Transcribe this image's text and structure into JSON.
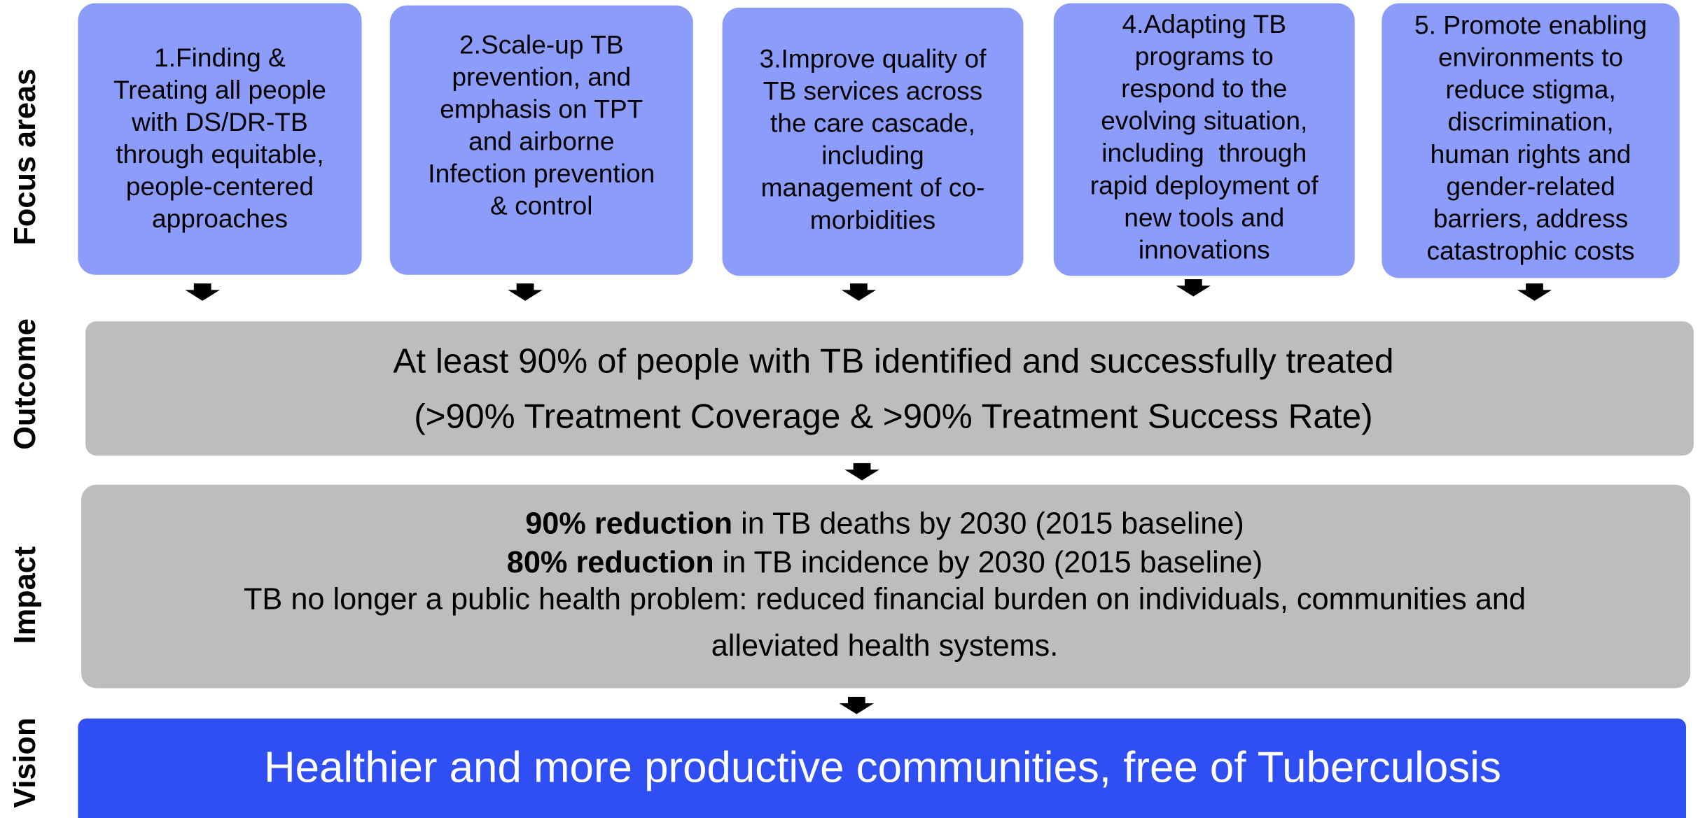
{
  "row_labels": [
    "Focus areas",
    "Outcome",
    "Impact",
    "Vision"
  ],
  "focus_areas": [
    {
      "lines": [
        "1.Finding &",
        "Treating all people",
        "with DS/DR-TB",
        "through equitable,",
        "people-centered",
        "approaches"
      ]
    },
    {
      "lines": [
        "2.Scale-up TB",
        "prevention, and",
        "emphasis on TPT",
        "and airborne",
        "Infection prevention",
        "& control"
      ]
    },
    {
      "lines": [
        "3.Improve quality of",
        "TB services across",
        "the care cascade,",
        "including",
        "management of co-",
        "morbidities"
      ]
    },
    {
      "lines": [
        "4.Adapting TB",
        "programs to",
        "respond to the",
        "evolving situation,",
        "including  through",
        "rapid deployment of",
        "new tools and",
        "innovations"
      ]
    },
    {
      "lines": [
        "5. Promote enabling",
        "environments to",
        "reduce stigma,",
        "discrimination,",
        "human rights and",
        "gender-related",
        "barriers, address",
        "catastrophic costs"
      ]
    }
  ],
  "outcome": {
    "lines": [
      "At least 90% of people with TB identified and successfully treated",
      "(>90% Treatment Coverage & >90% Treatment Success Rate)"
    ]
  },
  "impact": {
    "lines": [
      {
        "bold": "90% reduction",
        "text": " in TB deaths by 2030 (2015 baseline)"
      },
      {
        "bold": "80% reduction",
        "text": " in TB incidence by 2030 (2015 baseline)"
      },
      {
        "text": "TB no longer a public health problem: reduced financial burden on individuals, communities and"
      },
      {
        "text": "alleviated health systems."
      }
    ]
  },
  "vision": {
    "text": "Healthier and more productive communities, free of Tuberculosis"
  }
}
